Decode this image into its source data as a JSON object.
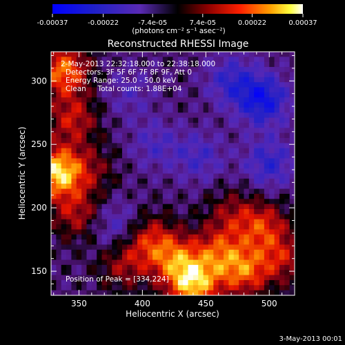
{
  "chart_data": {
    "type": "heatmap",
    "title": "Reconstructed RHESSI Image",
    "xlabel": "Heliocentric X (arcsec)",
    "ylabel": "Heliocentric Y (arcsec)",
    "xlim": [
      328,
      520
    ],
    "ylim": [
      131,
      323
    ],
    "xticks": [
      350,
      400,
      450,
      500
    ],
    "yticks": [
      150,
      200,
      250,
      300
    ],
    "grid_cells": 48,
    "grid": false,
    "colorbar": {
      "colormap": "blue-purple-red-yellow-white",
      "range": [
        -0.00037,
        0.00037
      ],
      "tick_values": [
        -0.00037,
        -0.00022,
        -7.4e-05,
        7.4e-05,
        0.00022,
        0.00037
      ],
      "tick_labels": [
        "-0.00037",
        "-0.00022",
        "-7.4e-05",
        "7.4e-05",
        "0.00022",
        "0.00037"
      ],
      "unit_label": "(photons cm⁻² s⁻¹ asec⁻²)"
    },
    "sources": [
      {
        "x": 333,
        "y": 228,
        "value": 0.00037
      },
      {
        "x": 338,
        "y": 308,
        "value": 0.00028
      },
      {
        "x": 345,
        "y": 270,
        "value": 0.00018
      },
      {
        "x": 348,
        "y": 195,
        "value": 0.00016
      },
      {
        "x": 360,
        "y": 230,
        "value": 0.0001
      },
      {
        "x": 440,
        "y": 140,
        "value": 0.00034
      },
      {
        "x": 425,
        "y": 160,
        "value": 0.00022
      },
      {
        "x": 460,
        "y": 165,
        "value": 0.0002
      },
      {
        "x": 480,
        "y": 150,
        "value": 0.00024
      },
      {
        "x": 495,
        "y": 185,
        "value": 0.0002
      },
      {
        "x": 405,
        "y": 175,
        "value": 0.00018
      },
      {
        "x": 385,
        "y": 155,
        "value": 0.00014
      },
      {
        "x": 510,
        "y": 160,
        "value": 0.00016
      },
      {
        "x": 470,
        "y": 195,
        "value": 0.00012
      },
      {
        "x": 380,
        "y": 185,
        "value": -0.00012
      },
      {
        "x": 495,
        "y": 285,
        "value": -0.00024
      },
      {
        "x": 470,
        "y": 300,
        "value": -0.00015
      },
      {
        "x": 410,
        "y": 250,
        "value": -0.0001
      },
      {
        "x": 445,
        "y": 240,
        "value": -0.00012
      },
      {
        "x": 500,
        "y": 235,
        "value": -0.00016
      },
      {
        "x": 390,
        "y": 290,
        "value": -8e-05
      }
    ],
    "annotations": {
      "time_range": "2-May-2013 22:32:18.000 to 22:38:18.000",
      "detectors": "Detectors: 3F 5F 6F 7F 8F 9F, Att 0",
      "energy_range": "Energy Range: 25.0 - 50.0 keV",
      "method_counts": "Clean     Total counts: 1.88E+04",
      "peak": "Position of Peak = [334,224]"
    },
    "footer_date": "3-May-2013 00:01"
  }
}
